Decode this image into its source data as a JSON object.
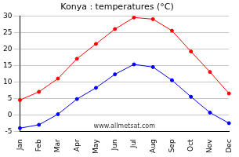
{
  "chart_data": {
    "type": "line",
    "title": "Konya : temperatures (°C)",
    "categories": [
      "Jan",
      "Feb",
      "Mar",
      "Apr",
      "May",
      "Jun",
      "Jul",
      "Aug",
      "Sep",
      "Oct",
      "Nov",
      "Dec"
    ],
    "series": [
      {
        "color": "#ff0000",
        "marker": "circle",
        "values": [
          4.5,
          7,
          11,
          17,
          21.5,
          26,
          29.5,
          29,
          25.5,
          19.2,
          13,
          6.5
        ]
      },
      {
        "color": "#0000ff",
        "marker": "circle",
        "values": [
          -4,
          -3,
          0.2,
          4.8,
          8.2,
          12.3,
          15.3,
          14.5,
          10.5,
          5.5,
          0.7,
          -2.5
        ]
      }
    ],
    "ylim": [
      -5,
      30
    ],
    "yticks": [
      -5,
      0,
      5,
      10,
      15,
      20,
      25,
      30
    ],
    "grid": true,
    "annotations": [
      "www.allmetsat.com"
    ]
  }
}
